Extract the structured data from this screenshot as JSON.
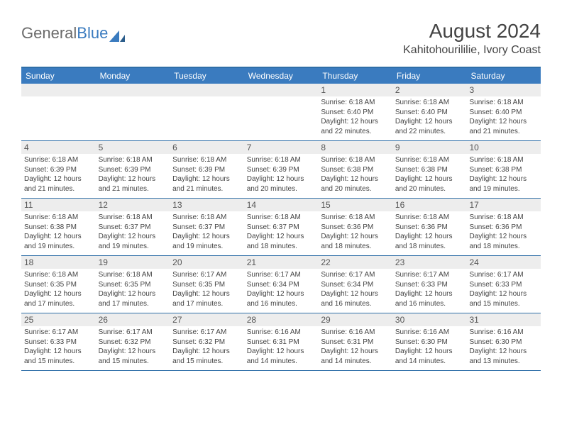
{
  "logo": {
    "text1": "General",
    "text2": "Blue"
  },
  "title": "August 2024",
  "location": "Kahitohourililie, Ivory Coast",
  "colors": {
    "header_bg": "#3a7bbf",
    "header_text": "#ffffff",
    "border": "#2f6fa8",
    "daynum_bg": "#ededed",
    "body_text": "#444444",
    "logo_gray": "#6b6b6b",
    "logo_blue": "#3a7bbf"
  },
  "fonts": {
    "title_size_pt": 21,
    "location_size_pt": 12,
    "weekday_size_pt": 9,
    "daynum_size_pt": 9,
    "body_size_pt": 7.5
  },
  "weekdays": [
    "Sunday",
    "Monday",
    "Tuesday",
    "Wednesday",
    "Thursday",
    "Friday",
    "Saturday"
  ],
  "weeks": [
    [
      null,
      null,
      null,
      null,
      {
        "n": "1",
        "sr": "6:18 AM",
        "ss": "6:40 PM",
        "dl": "12 hours and 22 minutes."
      },
      {
        "n": "2",
        "sr": "6:18 AM",
        "ss": "6:40 PM",
        "dl": "12 hours and 22 minutes."
      },
      {
        "n": "3",
        "sr": "6:18 AM",
        "ss": "6:40 PM",
        "dl": "12 hours and 21 minutes."
      }
    ],
    [
      {
        "n": "4",
        "sr": "6:18 AM",
        "ss": "6:39 PM",
        "dl": "12 hours and 21 minutes."
      },
      {
        "n": "5",
        "sr": "6:18 AM",
        "ss": "6:39 PM",
        "dl": "12 hours and 21 minutes."
      },
      {
        "n": "6",
        "sr": "6:18 AM",
        "ss": "6:39 PM",
        "dl": "12 hours and 21 minutes."
      },
      {
        "n": "7",
        "sr": "6:18 AM",
        "ss": "6:39 PM",
        "dl": "12 hours and 20 minutes."
      },
      {
        "n": "8",
        "sr": "6:18 AM",
        "ss": "6:38 PM",
        "dl": "12 hours and 20 minutes."
      },
      {
        "n": "9",
        "sr": "6:18 AM",
        "ss": "6:38 PM",
        "dl": "12 hours and 20 minutes."
      },
      {
        "n": "10",
        "sr": "6:18 AM",
        "ss": "6:38 PM",
        "dl": "12 hours and 19 minutes."
      }
    ],
    [
      {
        "n": "11",
        "sr": "6:18 AM",
        "ss": "6:38 PM",
        "dl": "12 hours and 19 minutes."
      },
      {
        "n": "12",
        "sr": "6:18 AM",
        "ss": "6:37 PM",
        "dl": "12 hours and 19 minutes."
      },
      {
        "n": "13",
        "sr": "6:18 AM",
        "ss": "6:37 PM",
        "dl": "12 hours and 19 minutes."
      },
      {
        "n": "14",
        "sr": "6:18 AM",
        "ss": "6:37 PM",
        "dl": "12 hours and 18 minutes."
      },
      {
        "n": "15",
        "sr": "6:18 AM",
        "ss": "6:36 PM",
        "dl": "12 hours and 18 minutes."
      },
      {
        "n": "16",
        "sr": "6:18 AM",
        "ss": "6:36 PM",
        "dl": "12 hours and 18 minutes."
      },
      {
        "n": "17",
        "sr": "6:18 AM",
        "ss": "6:36 PM",
        "dl": "12 hours and 18 minutes."
      }
    ],
    [
      {
        "n": "18",
        "sr": "6:18 AM",
        "ss": "6:35 PM",
        "dl": "12 hours and 17 minutes."
      },
      {
        "n": "19",
        "sr": "6:18 AM",
        "ss": "6:35 PM",
        "dl": "12 hours and 17 minutes."
      },
      {
        "n": "20",
        "sr": "6:17 AM",
        "ss": "6:35 PM",
        "dl": "12 hours and 17 minutes."
      },
      {
        "n": "21",
        "sr": "6:17 AM",
        "ss": "6:34 PM",
        "dl": "12 hours and 16 minutes."
      },
      {
        "n": "22",
        "sr": "6:17 AM",
        "ss": "6:34 PM",
        "dl": "12 hours and 16 minutes."
      },
      {
        "n": "23",
        "sr": "6:17 AM",
        "ss": "6:33 PM",
        "dl": "12 hours and 16 minutes."
      },
      {
        "n": "24",
        "sr": "6:17 AM",
        "ss": "6:33 PM",
        "dl": "12 hours and 15 minutes."
      }
    ],
    [
      {
        "n": "25",
        "sr": "6:17 AM",
        "ss": "6:33 PM",
        "dl": "12 hours and 15 minutes."
      },
      {
        "n": "26",
        "sr": "6:17 AM",
        "ss": "6:32 PM",
        "dl": "12 hours and 15 minutes."
      },
      {
        "n": "27",
        "sr": "6:17 AM",
        "ss": "6:32 PM",
        "dl": "12 hours and 15 minutes."
      },
      {
        "n": "28",
        "sr": "6:16 AM",
        "ss": "6:31 PM",
        "dl": "12 hours and 14 minutes."
      },
      {
        "n": "29",
        "sr": "6:16 AM",
        "ss": "6:31 PM",
        "dl": "12 hours and 14 minutes."
      },
      {
        "n": "30",
        "sr": "6:16 AM",
        "ss": "6:30 PM",
        "dl": "12 hours and 14 minutes."
      },
      {
        "n": "31",
        "sr": "6:16 AM",
        "ss": "6:30 PM",
        "dl": "12 hours and 13 minutes."
      }
    ]
  ],
  "labels": {
    "sunrise": "Sunrise: ",
    "sunset": "Sunset: ",
    "daylight": "Daylight: "
  }
}
